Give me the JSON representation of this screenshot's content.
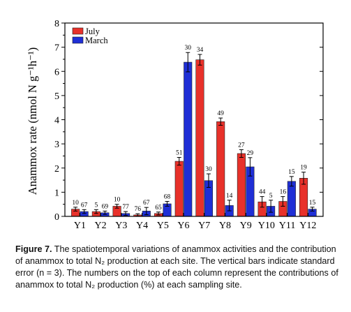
{
  "chart_data": {
    "type": "bar",
    "ylabel": "Anammox rate (nmol N g⁻¹h⁻¹)",
    "ylim": [
      0,
      8
    ],
    "yticks": [
      "0",
      "1",
      "2",
      "3",
      "4",
      "5",
      "6",
      "7",
      "8"
    ],
    "categories": [
      "Y1",
      "Y2",
      "Y3",
      "Y4",
      "Y5",
      "Y6",
      "Y7",
      "Y8",
      "Y9",
      "Y10",
      "Y11",
      "Y12"
    ],
    "legend_position": "top-left",
    "series": [
      {
        "name": "July",
        "color": "#e8312a",
        "values": [
          0.3,
          0.2,
          0.42,
          0.06,
          0.12,
          2.28,
          6.48,
          3.92,
          2.6,
          0.6,
          0.62,
          1.58
        ],
        "errors": [
          0.08,
          0.08,
          0.08,
          0.05,
          0.06,
          0.16,
          0.22,
          0.15,
          0.16,
          0.22,
          0.2,
          0.25
        ],
        "labels": [
          "10",
          "5",
          "10",
          "76",
          "65",
          "51",
          "34",
          "49",
          "27",
          "44",
          "16",
          "19"
        ]
      },
      {
        "name": "March",
        "color": "#1f2fd6",
        "values": [
          0.2,
          0.15,
          0.12,
          0.22,
          0.52,
          6.38,
          1.48,
          0.45,
          2.05,
          0.42,
          1.45,
          0.3
        ],
        "errors": [
          0.08,
          0.07,
          0.08,
          0.15,
          0.1,
          0.4,
          0.28,
          0.22,
          0.38,
          0.25,
          0.2,
          0.08
        ],
        "labels": [
          "67",
          "69",
          "77",
          "67",
          "68",
          "30",
          "30",
          "14",
          "29",
          "5",
          "15",
          "15"
        ]
      }
    ]
  },
  "caption": {
    "figure_label": "Figure 7.",
    "text": "The spatiotemporal variations of anammox activities and the contribution of anammox to total N₂ production at each site. The vertical bars indicate standard error (n = 3). The numbers on the top of each column represent the contributions of anammox to total N₂ production (%) at each sampling site."
  }
}
